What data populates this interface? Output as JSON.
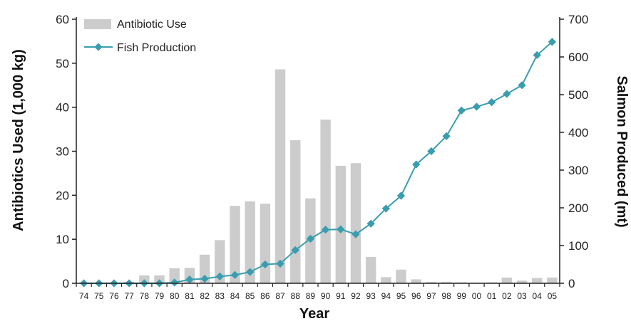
{
  "chart_data": {
    "type": "bar+line",
    "xlabel": "Year",
    "ylabel_left": "Antibiotics Used (1,000 kg)",
    "ylabel_right": "Salmon Produced (mt)",
    "ylim_left": [
      0,
      60
    ],
    "ylim_right": [
      0,
      700
    ],
    "yticks_left": [
      "0",
      "10",
      "20",
      "30",
      "40",
      "50",
      "60"
    ],
    "yticks_right": [
      "0",
      "100",
      "200",
      "300",
      "400",
      "500",
      "600",
      "700"
    ],
    "categories": [
      "74",
      "75",
      "76",
      "77",
      "78",
      "79",
      "80",
      "81",
      "82",
      "83",
      "84",
      "85",
      "86",
      "87",
      "88",
      "89",
      "90",
      "91",
      "92",
      "93",
      "94",
      "95",
      "96",
      "97",
      "98",
      "99",
      "00",
      "01",
      "02",
      "03",
      "04",
      "05"
    ],
    "series": [
      {
        "name": "Antibiotic Use",
        "type": "bar",
        "axis": "left",
        "color": "#cccccc",
        "values": [
          0,
          0,
          0,
          0.3,
          1.8,
          1.8,
          3.4,
          3.5,
          6.5,
          9.8,
          17.6,
          18.6,
          18.1,
          48.6,
          32.5,
          19.3,
          37.2,
          26.7,
          27.3,
          6.0,
          1.4,
          3.1,
          0.9,
          0.3,
          0.3,
          0.2,
          0.1,
          0.2,
          1.3,
          0.6,
          1.2,
          1.3
        ]
      },
      {
        "name": "Fish Production",
        "type": "line",
        "axis": "right",
        "color": "#3a9dae",
        "values": [
          0,
          0,
          0,
          0,
          0,
          0,
          2,
          10,
          12,
          18,
          22,
          30,
          50,
          52,
          88,
          118,
          142,
          143,
          130,
          158,
          198,
          232,
          315,
          350,
          390,
          458,
          468,
          480,
          502,
          525,
          605,
          640
        ]
      }
    ],
    "legend_position": "top-left"
  }
}
